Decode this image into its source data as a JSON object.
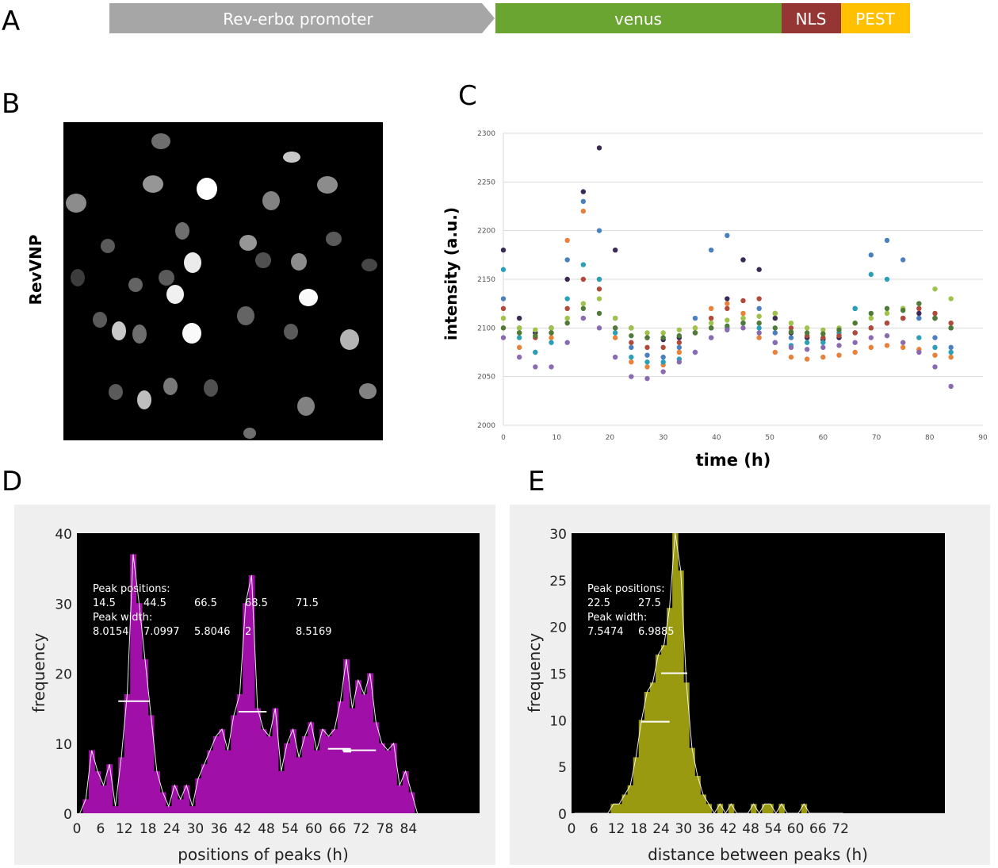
{
  "panels": {
    "a": "A",
    "b": "B",
    "c": "C",
    "d": "D",
    "e": "E"
  },
  "construct": {
    "segments": [
      {
        "label": "Rev-erbα promoter",
        "color": "#a6a6a6"
      },
      {
        "label": "venus",
        "color": "#6aa431"
      },
      {
        "label": "NLS",
        "color": "#963634"
      },
      {
        "label": "PEST",
        "color": "#ffc000"
      }
    ]
  },
  "image_panel": {
    "label": "RevVNP"
  },
  "chart_data": [
    {
      "type": "scatter",
      "xlabel": "time (h)",
      "ylabel": "intensity (a.u.)",
      "xlim": [
        0,
        90
      ],
      "ylim": [
        2000,
        2300
      ],
      "xticks": [
        "0",
        "10",
        "20",
        "30",
        "40",
        "50",
        "60",
        "70",
        "80",
        "90"
      ],
      "yticks": [
        "2000",
        "2050",
        "2100",
        "2150",
        "2200",
        "2250",
        "2300"
      ],
      "grid": true,
      "x": [
        0,
        3,
        6,
        9,
        12,
        15,
        18,
        21,
        24,
        27,
        30,
        33,
        36,
        39,
        42,
        45,
        48,
        51,
        54,
        57,
        60,
        63,
        66,
        69,
        72,
        75,
        78,
        81,
        84
      ],
      "series": [
        {
          "color": "#4a7fc0",
          "values": [
            2130,
            2100,
            2095,
            2100,
            2170,
            2230,
            2200,
            2110,
            2080,
            2072,
            2070,
            2080,
            2110,
            2180,
            2195,
            2170,
            2120,
            2095,
            2090,
            2090,
            2088,
            2092,
            2120,
            2175,
            2190,
            2170,
            2110,
            2090,
            2080
          ]
        },
        {
          "color": "#3b2a55",
          "values": [
            2180,
            2110,
            2095,
            2100,
            2150,
            2240,
            2285,
            2180,
            2100,
            2090,
            2088,
            2090,
            2095,
            2100,
            2130,
            2170,
            2160,
            2110,
            2095,
            2090,
            2088,
            2090,
            2095,
            2100,
            2105,
            2110,
            2115,
            2110,
            2100
          ]
        },
        {
          "color": "#e8823a",
          "values": [
            2100,
            2080,
            2075,
            2090,
            2190,
            2220,
            2150,
            2090,
            2065,
            2060,
            2062,
            2075,
            2100,
            2120,
            2125,
            2115,
            2090,
            2075,
            2070,
            2068,
            2070,
            2072,
            2075,
            2080,
            2082,
            2080,
            2078,
            2072,
            2070
          ]
        },
        {
          "color": "#2aa0b8",
          "values": [
            2160,
            2090,
            2075,
            2085,
            2130,
            2165,
            2150,
            2095,
            2070,
            2065,
            2065,
            2068,
            2075,
            2090,
            2100,
            2105,
            2100,
            2085,
            2082,
            2085,
            2085,
            2095,
            2120,
            2155,
            2150,
            2120,
            2090,
            2080,
            2075
          ]
        },
        {
          "color": "#b04a3a",
          "values": [
            2120,
            2095,
            2090,
            2095,
            2120,
            2150,
            2140,
            2100,
            2085,
            2080,
            2080,
            2085,
            2095,
            2110,
            2120,
            2128,
            2130,
            2115,
            2100,
            2092,
            2090,
            2092,
            2095,
            2100,
            2105,
            2110,
            2120,
            2115,
            2105
          ]
        },
        {
          "color": "#9ec24a",
          "values": [
            2110,
            2100,
            2098,
            2100,
            2110,
            2125,
            2130,
            2110,
            2100,
            2095,
            2095,
            2098,
            2100,
            2105,
            2108,
            2110,
            2112,
            2115,
            2105,
            2100,
            2098,
            2100,
            2105,
            2110,
            2115,
            2120,
            2125,
            2140,
            2130
          ]
        },
        {
          "color": "#4f7a3a",
          "values": [
            2100,
            2095,
            2092,
            2095,
            2105,
            2120,
            2115,
            2100,
            2092,
            2090,
            2090,
            2092,
            2095,
            2100,
            2102,
            2105,
            2105,
            2100,
            2096,
            2095,
            2094,
            2098,
            2105,
            2115,
            2120,
            2118,
            2125,
            2110,
            2100
          ]
        },
        {
          "color": "#8a6ab0",
          "values": [
            2090,
            2070,
            2060,
            2060,
            2085,
            2110,
            2100,
            2070,
            2050,
            2048,
            2055,
            2065,
            2075,
            2090,
            2098,
            2100,
            2095,
            2085,
            2080,
            2078,
            2080,
            2082,
            2085,
            2090,
            2092,
            2085,
            2075,
            2060,
            2040
          ]
        }
      ]
    },
    {
      "type": "bar",
      "title": "",
      "xlabel": "positions of peaks (h)",
      "ylabel": "frequency",
      "xlim": [
        0,
        102
      ],
      "ylim": [
        0,
        40
      ],
      "xticks": [
        "0",
        "6",
        "12",
        "18",
        "24",
        "30",
        "36",
        "42",
        "48",
        "54",
        "60",
        "66",
        "72",
        "78",
        "84"
      ],
      "yticks": [
        "0",
        "10",
        "20",
        "30",
        "40"
      ],
      "bin_width": 1.5,
      "values": [
        0,
        2,
        9,
        6,
        4,
        7,
        1,
        8,
        17,
        37,
        30,
        22,
        14,
        6,
        3,
        1,
        4,
        2,
        4,
        1,
        5,
        7,
        9,
        11,
        12,
        9,
        14,
        17,
        30,
        34,
        15,
        12,
        11,
        15,
        6,
        10,
        12,
        8,
        11,
        13,
        9,
        12,
        11,
        12,
        16,
        22,
        15,
        19,
        17,
        20,
        13,
        10,
        9,
        10,
        4,
        6,
        3,
        0
      ],
      "bar_color": "#a010a8",
      "annotation": {
        "positions_label": "Peak positions:",
        "positions": [
          "14.5",
          "44.5",
          "66.5",
          "68.5",
          "71.5"
        ],
        "width_label": "Peak width:",
        "widths": [
          "8.0154",
          "7.0997",
          "5.8046",
          "2",
          "8.5169"
        ]
      },
      "peaks": [
        {
          "center": 14.5,
          "width": 8.0154,
          "height": 16
        },
        {
          "center": 44.5,
          "width": 7.0997,
          "height": 14.5
        },
        {
          "center": 66.5,
          "width": 5.8046,
          "height": 9.2
        },
        {
          "center": 68.5,
          "width": 2,
          "height": 8.8
        },
        {
          "center": 71.5,
          "width": 8.5169,
          "height": 9
        }
      ]
    },
    {
      "type": "bar",
      "title": "",
      "xlabel": "distance between peaks (h)",
      "ylabel": "frequency",
      "xlim": [
        0,
        100
      ],
      "ylim": [
        0,
        30
      ],
      "xticks": [
        "0",
        "6",
        "12",
        "18",
        "24",
        "30",
        "36",
        "42",
        "48",
        "54",
        "60",
        "66",
        "72"
      ],
      "yticks": [
        "0",
        "5",
        "10",
        "15",
        "20",
        "25",
        "30"
      ],
      "bin_width": 1.5,
      "values": [
        0,
        0,
        0,
        0,
        0,
        0,
        0,
        1,
        1,
        2,
        3,
        6,
        10,
        13,
        14,
        17,
        18,
        22,
        30,
        26,
        14,
        7,
        4,
        2,
        1,
        0,
        1,
        0,
        1,
        0,
        0,
        0,
        1,
        0,
        1,
        1,
        0,
        1,
        0,
        0,
        0,
        1,
        0,
        0,
        0,
        0,
        0,
        0,
        0
      ],
      "bar_color": "#9a9a10",
      "annotation": {
        "positions_label": "Peak positions:",
        "positions": [
          "22.5",
          "27.5"
        ],
        "width_label": "Peak width:",
        "widths": [
          "7.5474",
          "6.9885"
        ]
      },
      "peaks": [
        {
          "center": 22.5,
          "width": 7.5474,
          "height": 9.8
        },
        {
          "center": 27.5,
          "width": 6.9885,
          "height": 15
        }
      ]
    }
  ]
}
